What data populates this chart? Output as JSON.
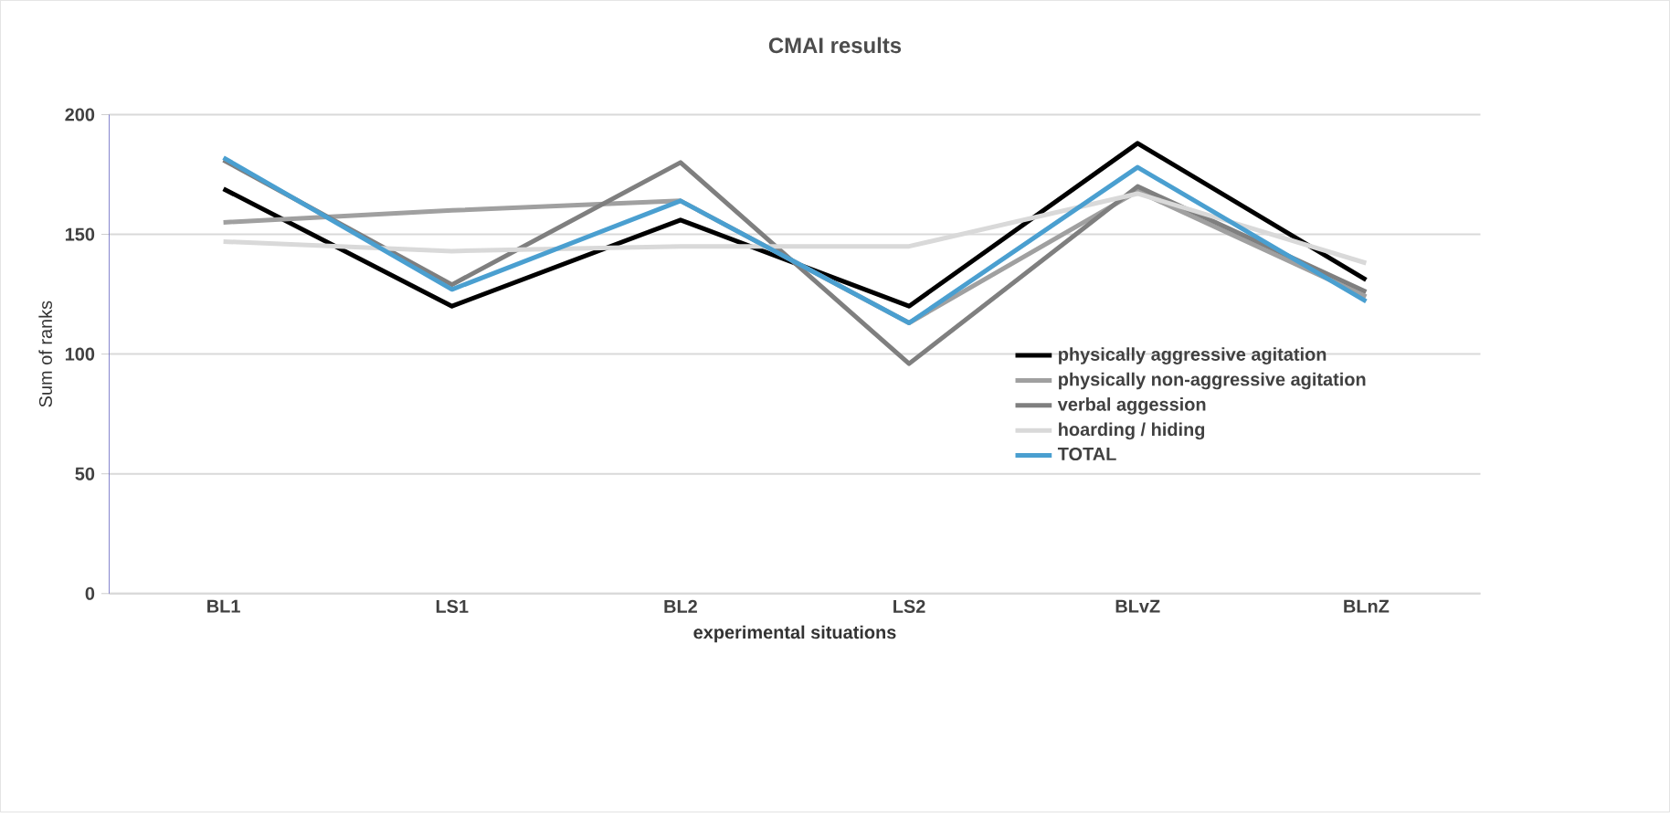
{
  "chart_data": {
    "type": "line",
    "title": "CMAI results",
    "xlabel": "experimental situations",
    "ylabel": "Sum of ranks",
    "categories": [
      "BL1",
      "LS1",
      "BL2",
      "LS2",
      "BLvZ",
      "BLnZ"
    ],
    "series": [
      {
        "name": "physically aggressive agitation",
        "color": "#000000",
        "values": [
          169,
          120,
          156,
          120,
          188,
          131
        ]
      },
      {
        "name": "physically non-aggressive agitation",
        "color": "#a0a0a0",
        "values": [
          155,
          160,
          164,
          113,
          168,
          124
        ]
      },
      {
        "name": "verbal aggession",
        "color": "#7f7f7f",
        "values": [
          181,
          129,
          180,
          96,
          170,
          126
        ]
      },
      {
        "name": "hoarding / hiding",
        "color": "#d9d9d9",
        "values": [
          147,
          143,
          145,
          145,
          167,
          138
        ]
      },
      {
        "name": "TOTAL",
        "color": "#4a9fd0",
        "values": [
          182,
          127,
          164,
          113,
          178,
          122
        ]
      }
    ],
    "ylim": [
      0,
      200
    ],
    "yticks": [
      0,
      50,
      100,
      150,
      200
    ],
    "grid": "y",
    "legend": "right",
    "line_style": "solid",
    "marker": "none"
  }
}
